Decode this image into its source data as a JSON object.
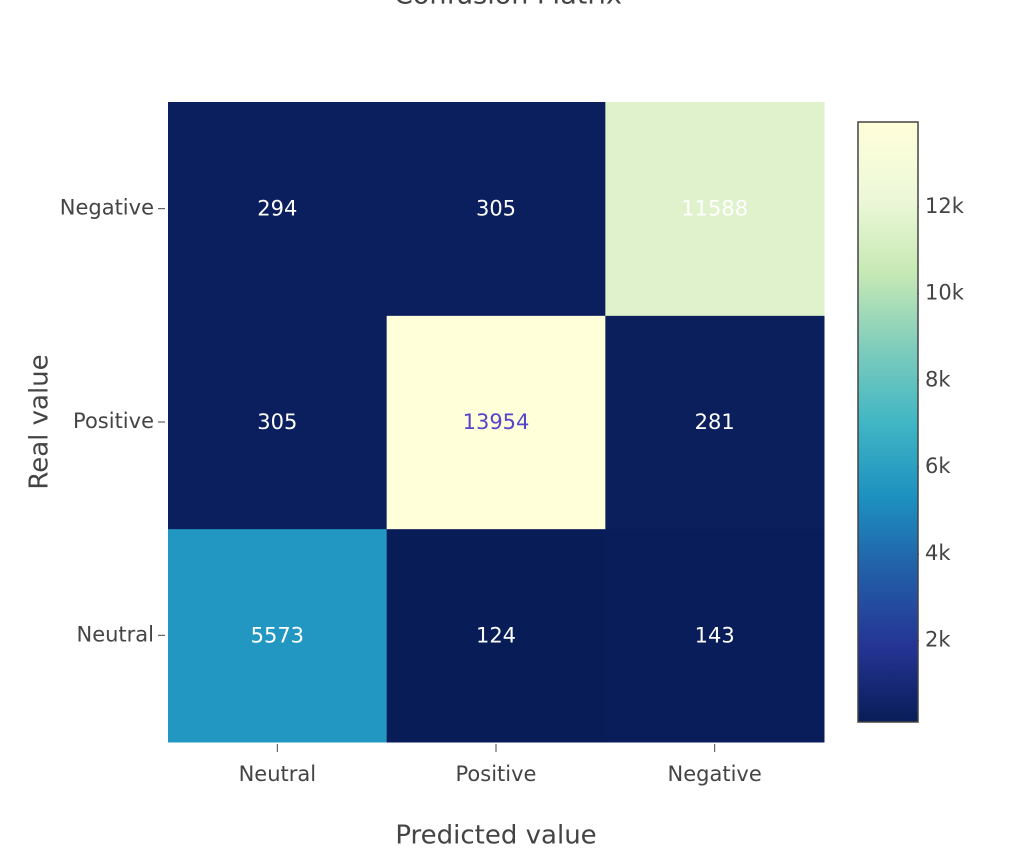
{
  "chart_data": {
    "type": "heatmap",
    "title": "Confusion Matrix",
    "x_label": "Predicted value",
    "y_label": "Real value",
    "x": [
      "Neutral",
      "Positive",
      "Negative"
    ],
    "y": [
      "Neutral",
      "Positive",
      "Negative"
    ],
    "z": [
      [
        5573,
        124,
        143
      ],
      [
        305,
        13954,
        281
      ],
      [
        294,
        305,
        11588
      ]
    ],
    "zlim": [
      124,
      13954
    ],
    "zticks": [
      {
        "value": 2000,
        "label": "2k"
      },
      {
        "value": 4000,
        "label": "4k"
      },
      {
        "value": 6000,
        "label": "6k"
      },
      {
        "value": 8000,
        "label": "8k"
      },
      {
        "value": 10000,
        "label": "10k"
      },
      {
        "value": 12000,
        "label": "12k"
      }
    ],
    "colorscale": [
      "#081d58",
      "#253494",
      "#225ea8",
      "#1d91c0",
      "#41b6c4",
      "#7fcdbb",
      "#c7e9b4",
      "#edf8d9",
      "#ffffd9"
    ]
  }
}
